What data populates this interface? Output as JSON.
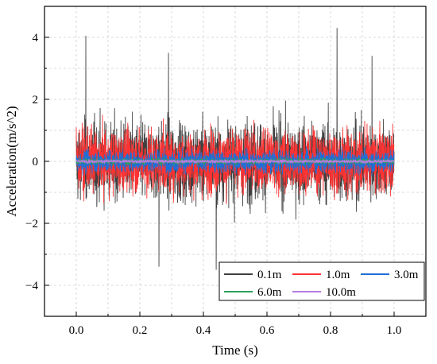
{
  "chart_data": {
    "type": "line",
    "title": "",
    "xlabel": "Time (s)",
    "ylabel": "Acceleration(m/s^2)",
    "xlim": [
      -0.1,
      1.1
    ],
    "ylim": [
      -5,
      5
    ],
    "x_ticks": [
      0.0,
      0.2,
      0.4,
      0.6,
      0.8,
      1.0
    ],
    "x_tick_labels": [
      "0.0",
      "0.2",
      "0.4",
      "0.6",
      "0.8",
      "1.0"
    ],
    "y_ticks": [
      -4,
      -2,
      0,
      2,
      4
    ],
    "y_tick_labels": [
      "−4",
      "−2",
      "0",
      "2",
      "4"
    ],
    "grid": true,
    "legend_position": "bottom-right",
    "x_range": [
      0.0,
      1.0
    ],
    "samples": 2000,
    "series": [
      {
        "name": "0.1m",
        "color": "#404040",
        "amplitude": 1.6,
        "peak_max": 4.3,
        "peak_min": -3.5,
        "values": []
      },
      {
        "name": "1.0m",
        "color": "#ff3333",
        "amplitude": 1.25,
        "peak_max": 1.5,
        "peak_min": -1.5,
        "values": []
      },
      {
        "name": "3.0m",
        "color": "#1f6fd6",
        "amplitude": 0.45,
        "peak_max": 0.55,
        "peak_min": -0.55,
        "values": []
      },
      {
        "name": "6.0m",
        "color": "#2ca05a",
        "amplitude": 0.12,
        "peak_max": 0.15,
        "peak_min": -0.15,
        "values": []
      },
      {
        "name": "10.0m",
        "color": "#b57bde",
        "amplitude": 0.07,
        "peak_max": 0.09,
        "peak_min": -0.09,
        "values": []
      }
    ]
  }
}
